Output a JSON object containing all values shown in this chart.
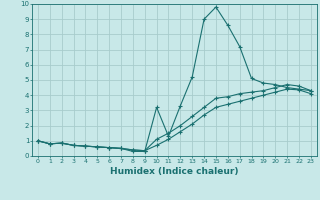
{
  "xlabel": "Humidex (Indice chaleur)",
  "bg_color": "#c8e8e8",
  "grid_color": "#a8cccc",
  "line_color": "#1a7070",
  "xlim": [
    -0.5,
    23.5
  ],
  "ylim": [
    0,
    10
  ],
  "xticks": [
    0,
    1,
    2,
    3,
    4,
    5,
    6,
    7,
    8,
    9,
    10,
    11,
    12,
    13,
    14,
    15,
    16,
    17,
    18,
    19,
    20,
    21,
    22,
    23
  ],
  "yticks": [
    0,
    1,
    2,
    3,
    4,
    5,
    6,
    7,
    8,
    9,
    10
  ],
  "curve1_x": [
    0,
    1,
    2,
    3,
    4,
    5,
    6,
    7,
    8,
    9,
    10,
    11,
    12,
    13,
    14,
    15,
    16,
    17,
    18,
    19,
    20,
    21,
    22,
    23
  ],
  "curve1_y": [
    1.0,
    0.8,
    0.85,
    0.7,
    0.65,
    0.6,
    0.55,
    0.5,
    0.3,
    0.3,
    3.2,
    1.3,
    3.3,
    5.2,
    9.0,
    9.8,
    8.6,
    7.2,
    5.1,
    4.8,
    4.7,
    4.5,
    4.4,
    4.3
  ],
  "curve2_x": [
    0,
    1,
    2,
    3,
    4,
    5,
    6,
    7,
    8,
    9,
    10,
    11,
    12,
    13,
    14,
    15,
    16,
    17,
    18,
    19,
    20,
    21,
    22,
    23
  ],
  "curve2_y": [
    1.0,
    0.8,
    0.85,
    0.7,
    0.65,
    0.6,
    0.55,
    0.5,
    0.4,
    0.35,
    1.1,
    1.5,
    2.0,
    2.6,
    3.2,
    3.8,
    3.9,
    4.1,
    4.2,
    4.3,
    4.5,
    4.7,
    4.6,
    4.3
  ],
  "curve3_x": [
    0,
    1,
    2,
    3,
    4,
    5,
    6,
    7,
    8,
    9,
    10,
    11,
    12,
    13,
    14,
    15,
    16,
    17,
    18,
    19,
    20,
    21,
    22,
    23
  ],
  "curve3_y": [
    1.0,
    0.8,
    0.85,
    0.7,
    0.65,
    0.6,
    0.55,
    0.5,
    0.4,
    0.35,
    0.7,
    1.1,
    1.6,
    2.1,
    2.7,
    3.2,
    3.4,
    3.6,
    3.8,
    4.0,
    4.2,
    4.4,
    4.35,
    4.1
  ]
}
